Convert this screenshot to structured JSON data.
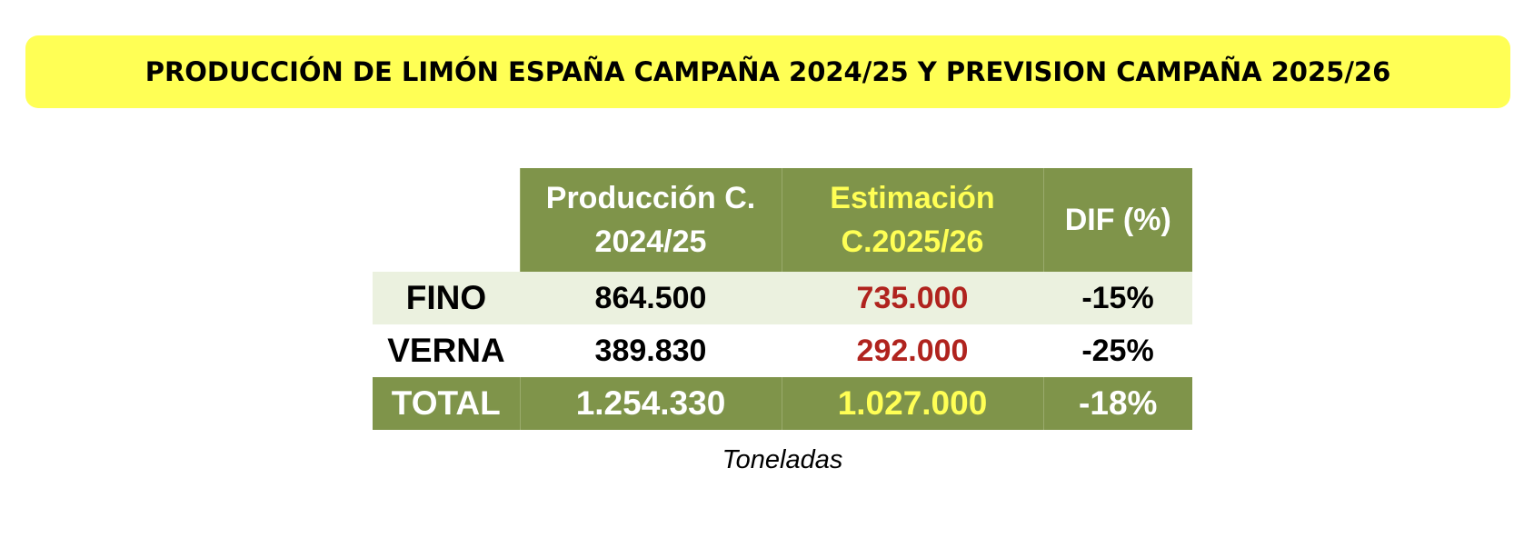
{
  "title": "PRODUCCIÓN DE LIMÓN ESPAÑA CAMPAÑA 2024/25 Y PREVISION CAMPAÑA 2025/26",
  "colors": {
    "banner": "#ffff55",
    "header_green": "#7f944a",
    "fino_row": "#ebf1df",
    "estimate_red": "#b0231e",
    "estimate_yellow": "#ffff55"
  },
  "table": {
    "headers": {
      "production_line1": "Producción C.",
      "production_line2": "2024/25",
      "estimate_line1": "Estimación",
      "estimate_line2": "C.2025/26",
      "dif": "DIF (%)"
    },
    "rows": [
      {
        "label": "FINO",
        "production": "864.500",
        "estimate": "735.000",
        "dif": "-15%"
      },
      {
        "label": "VERNA",
        "production": "389.830",
        "estimate": "292.000",
        "dif": "-25%"
      }
    ],
    "total": {
      "label": "TOTAL",
      "production": "1.254.330",
      "estimate": "1.027.000",
      "dif": "-18%"
    }
  },
  "footnote": "Toneladas"
}
